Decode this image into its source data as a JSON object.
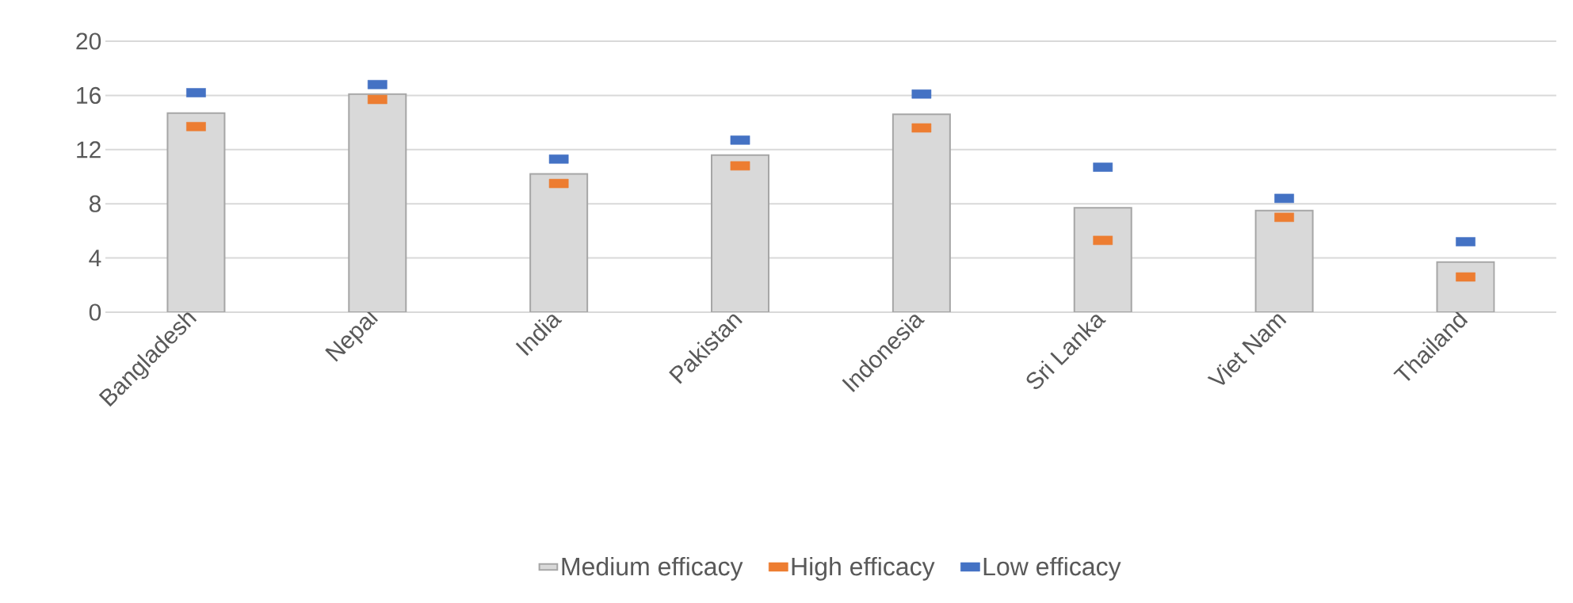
{
  "chart_data": {
    "type": "bar",
    "categories": [
      "Bangladesh",
      "Nepal",
      "India",
      "Pakistan",
      "Indonesia",
      "Sri Lanka",
      "Viet Nam",
      "Thailand"
    ],
    "series": [
      {
        "name": "Medium efficacy",
        "type": "bar",
        "color": "#d9d9d9",
        "values": [
          14.7,
          16.1,
          10.2,
          11.6,
          14.6,
          7.7,
          7.5,
          3.7
        ]
      },
      {
        "name": "High efficacy",
        "type": "scatter",
        "color": "#ed7d31",
        "values": [
          13.7,
          15.7,
          9.5,
          10.8,
          13.6,
          5.3,
          7.0,
          2.6
        ]
      },
      {
        "name": "Low efficacy",
        "type": "scatter",
        "color": "#4472c4",
        "values": [
          16.2,
          16.8,
          11.3,
          12.7,
          16.1,
          10.7,
          8.4,
          5.2
        ]
      }
    ],
    "ylim": [
      0,
      20
    ],
    "yticks": [
      0,
      4,
      8,
      12,
      16,
      20
    ],
    "grid": "y",
    "legend": "bottom"
  }
}
